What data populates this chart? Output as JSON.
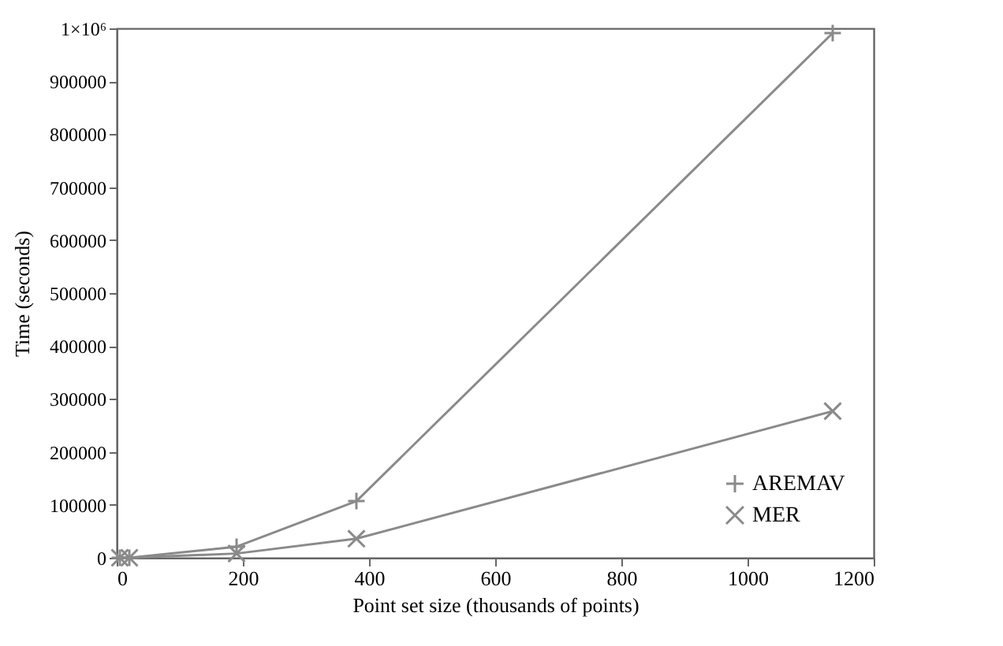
{
  "chart_data": {
    "type": "line",
    "xlabel": "Point set size (thousands of points)",
    "ylabel": "Time (seconds)",
    "x": [
      5,
      20,
      190,
      380,
      1135
    ],
    "series": [
      {
        "name": "AREMAV",
        "color": "#8a8a8a",
        "values": [
          0,
          0,
          21000,
          107000,
          991000
        ]
      },
      {
        "name": "MER",
        "color": "#8a8a8a",
        "values": [
          0,
          0,
          8000,
          36000,
          277000
        ]
      }
    ],
    "xlim": [
      0,
      1200
    ],
    "xticks": [
      0,
      200,
      400,
      600,
      800,
      1000,
      1200
    ],
    "ylim": [
      0,
      1000000
    ],
    "yticks": [
      0,
      100000,
      200000,
      300000,
      400000,
      500000,
      600000,
      700000,
      800000,
      900000,
      {
        "value": 1000000,
        "label": "1×10⁶"
      }
    ],
    "marker": "cross",
    "line_style": "solid",
    "legend": "bottom right",
    "grid": false
  }
}
